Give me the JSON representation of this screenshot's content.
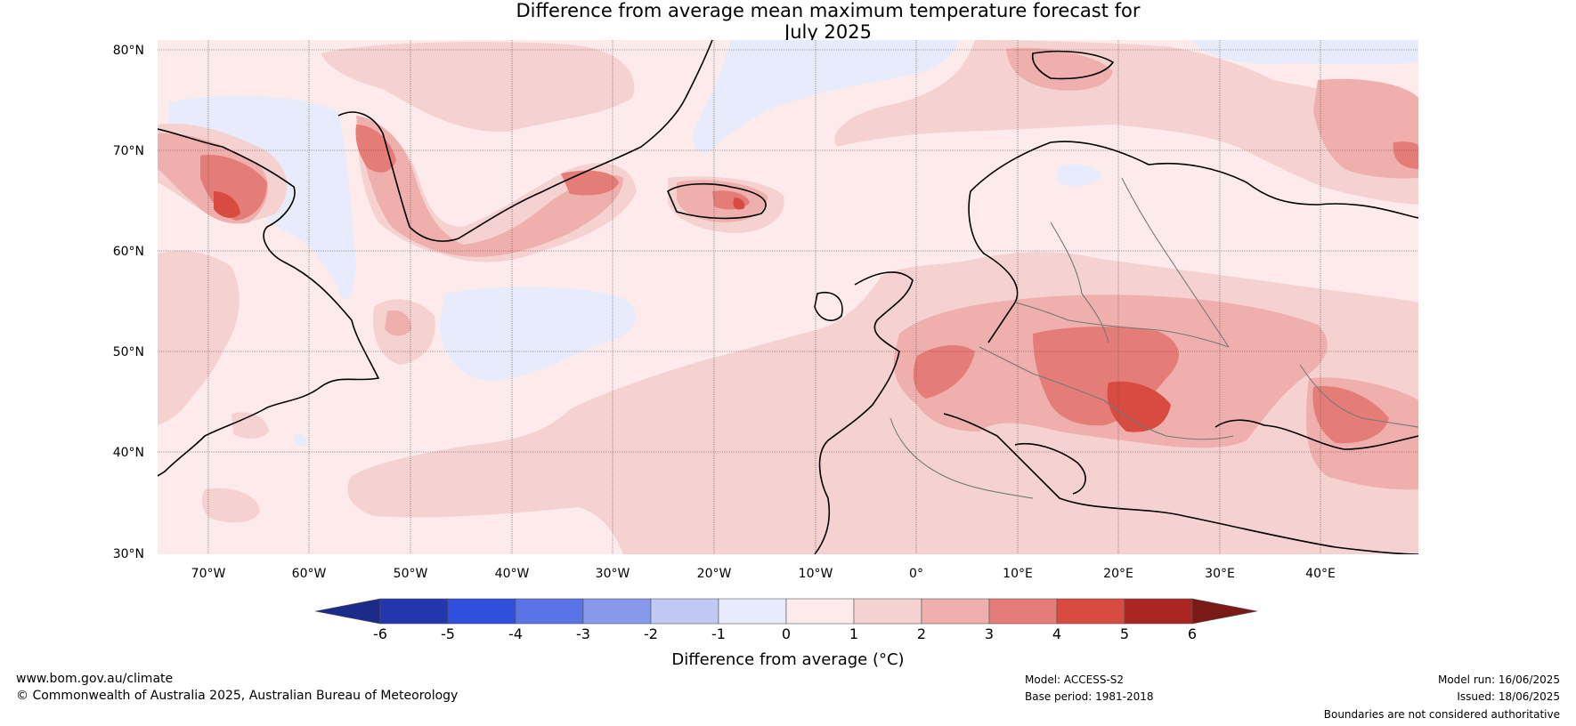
{
  "title": {
    "line1": "Difference from average mean maximum temperature forecast for",
    "line2": "July 2025"
  },
  "map": {
    "lat_labels": [
      "80°N",
      "70°N",
      "60°N",
      "50°N",
      "40°N",
      "30°N"
    ],
    "lon_labels": [
      "70°W",
      "60°W",
      "50°W",
      "40°W",
      "30°W",
      "20°W",
      "10°W",
      "0°",
      "10°E",
      "20°E",
      "30°E",
      "40°E"
    ]
  },
  "colorbar": {
    "ticks": [
      "-6",
      "-5",
      "-4",
      "-3",
      "-2",
      "-1",
      "0",
      "1",
      "2",
      "3",
      "4",
      "5",
      "6"
    ],
    "colors": [
      "#1c2a8a",
      "#2336b0",
      "#2f4fdc",
      "#5a74e6",
      "#8899ec",
      "#c0c8f4",
      "#e8ebfb",
      "#fcebea",
      "#f5d2d0",
      "#eeafad",
      "#e47d77",
      "#d84b40",
      "#a92622",
      "#7a1a16"
    ],
    "label": "Difference from average (°C)"
  },
  "footer": {
    "website": "www.bom.gov.au/climate",
    "copyright": "© Commonwealth of Australia 2025, Australian Bureau of Meteorology",
    "model": "Model: ACCESS-S2",
    "base_period": "Base period: 1981-2018",
    "model_run": "Model run: 16/06/2025",
    "issued": "Issued: 18/06/2025",
    "disclaimer": "Boundaries are not considered authoritative"
  }
}
